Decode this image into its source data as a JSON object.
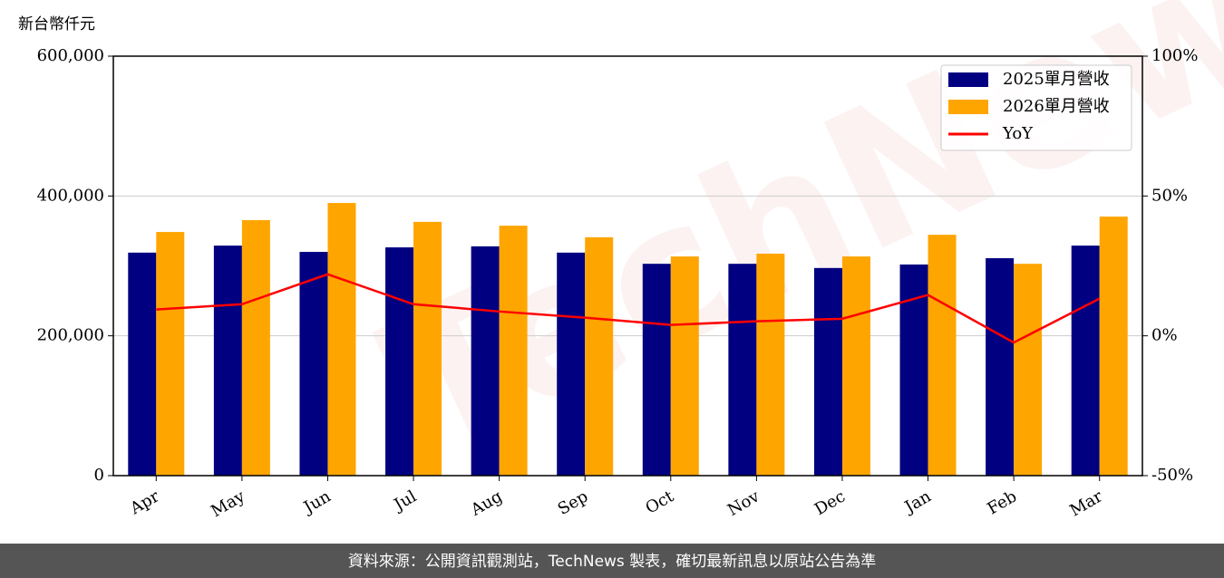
{
  "chart_data": {
    "type": "bar",
    "y_label": "新台幣仟元",
    "categories": [
      "Apr",
      "May",
      "Jun",
      "Jul",
      "Aug",
      "Sep",
      "Oct",
      "Nov",
      "Dec",
      "Jan",
      "Feb",
      "Mar"
    ],
    "series": [
      {
        "name": "2025單月營收",
        "color": "#000080",
        "values": [
          319000,
          329000,
          320000,
          326500,
          328000,
          319000,
          303000,
          303000,
          297000,
          302000,
          311000,
          329000
        ]
      },
      {
        "name": "2026單月營收",
        "color": "#ffa500",
        "values": [
          348500,
          365500,
          390000,
          363000,
          357500,
          341000,
          313500,
          317500,
          313500,
          344500,
          303000,
          370500
        ]
      },
      {
        "name": "YoY",
        "type": "line",
        "axis": "y2",
        "color": "#ff0000",
        "values": [
          9.4,
          11.3,
          22.0,
          11.3,
          8.7,
          6.5,
          3.9,
          5.2,
          6.1,
          14.6,
          -2.4,
          13.3
        ]
      }
    ],
    "ylim": [
      0,
      600000
    ],
    "yticks": [
      0,
      {
        "value": 200000,
        "label": "200,000"
      },
      {
        "value": 400000,
        "label": "400,000"
      },
      {
        "value": 600000,
        "label": "600,000"
      }
    ],
    "y2lim": [
      -50,
      100
    ],
    "y2ticks": [
      {
        "value": -50,
        "label": "-50%"
      },
      {
        "value": 0,
        "label": "0%"
      },
      {
        "value": 50,
        "label": "50%"
      },
      {
        "value": 100,
        "label": "100%"
      }
    ],
    "grid": true,
    "legend": "upper right"
  },
  "watermark": "TechNews",
  "footer": "資料來源：公開資訊觀測站，TechNews 製表，確切最新訊息以原站公告為準"
}
